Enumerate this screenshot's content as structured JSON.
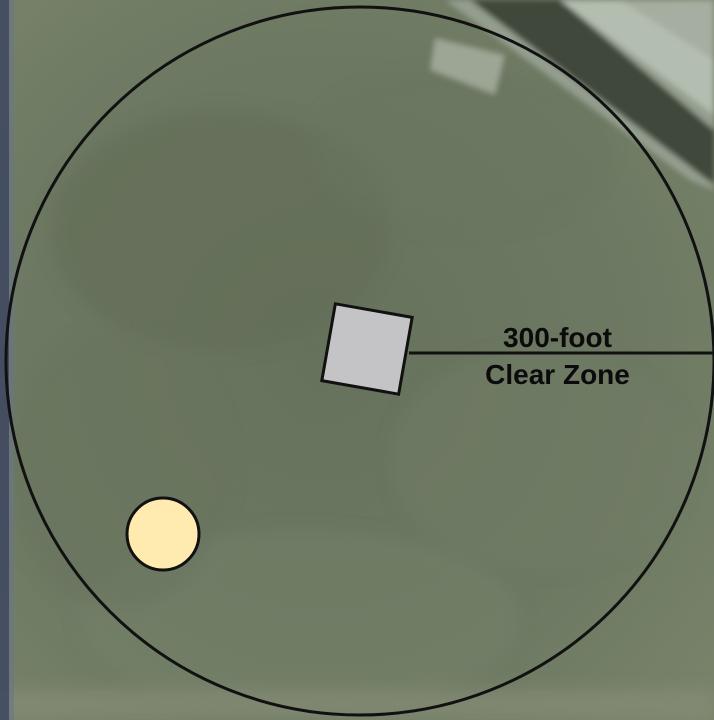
{
  "map": {
    "clear_zone_label": {
      "line1": "300-foot",
      "line2": "Clear Zone"
    }
  },
  "colors": {
    "ground": "#6b7760",
    "boundary": "#111111",
    "structure": "#c4c4c6",
    "marker": "#ffeab0",
    "label_text": "#0b0b0b"
  }
}
